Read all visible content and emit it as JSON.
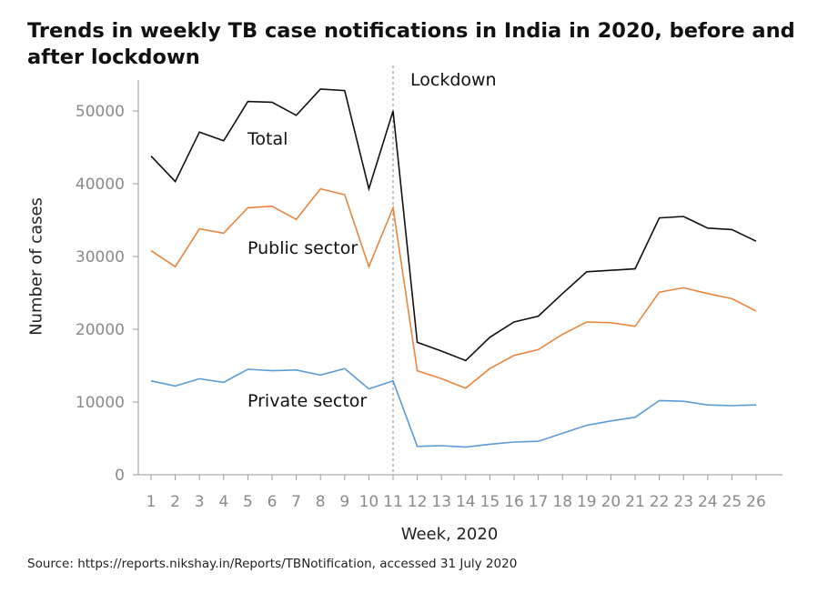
{
  "chart_data": {
    "type": "line",
    "title": "Trends in weekly TB case notifications in India in 2020, before and after lockdown",
    "xlabel": "Week, 2020",
    "ylabel": "Number of cases",
    "source": "Source: https://reports.nikshay.in/Reports/TBNotification, accessed 31 July 2020",
    "x": [
      1,
      2,
      3,
      4,
      5,
      6,
      7,
      8,
      9,
      10,
      11,
      12,
      13,
      14,
      15,
      16,
      17,
      18,
      19,
      20,
      21,
      22,
      23,
      24,
      25,
      26
    ],
    "yticks": [
      0,
      10000,
      20000,
      30000,
      40000,
      50000
    ],
    "ylim": [
      0,
      54000
    ],
    "xlim": [
      0.5,
      27.2
    ],
    "grid": false,
    "legend": "none",
    "series": [
      {
        "name": "Total",
        "color": "#111111",
        "values": [
          43800,
          40300,
          47100,
          45900,
          51300,
          51200,
          49400,
          53000,
          52800,
          39300,
          50000,
          18200,
          17000,
          15700,
          18900,
          21000,
          21800,
          24900,
          27900,
          28100,
          28300,
          35300,
          35500,
          33900,
          33700,
          32100
        ]
      },
      {
        "name": "Public sector",
        "color": "#e8863e",
        "values": [
          30800,
          28600,
          33800,
          33200,
          36700,
          36900,
          35100,
          39300,
          38500,
          28600,
          36700,
          14300,
          13200,
          11900,
          14600,
          16400,
          17200,
          19300,
          21000,
          20900,
          20400,
          25100,
          25700,
          24900,
          24200,
          22500
        ]
      },
      {
        "name": "Private sector",
        "color": "#5b9bd5",
        "values": [
          12900,
          12200,
          13200,
          12700,
          14500,
          14300,
          14400,
          13700,
          14600,
          11800,
          12900,
          3900,
          4000,
          3800,
          4200,
          4500,
          4600,
          5700,
          6800,
          7400,
          7900,
          10200,
          10100,
          9600,
          9500,
          9600
        ]
      }
    ],
    "annotations": [
      {
        "text": "Lockdown",
        "x": 11,
        "type": "vline"
      },
      {
        "text": "Total",
        "series": "Total"
      },
      {
        "text": "Public sector",
        "series": "Public sector"
      },
      {
        "text": "Private sector",
        "series": "Private sector"
      }
    ]
  }
}
